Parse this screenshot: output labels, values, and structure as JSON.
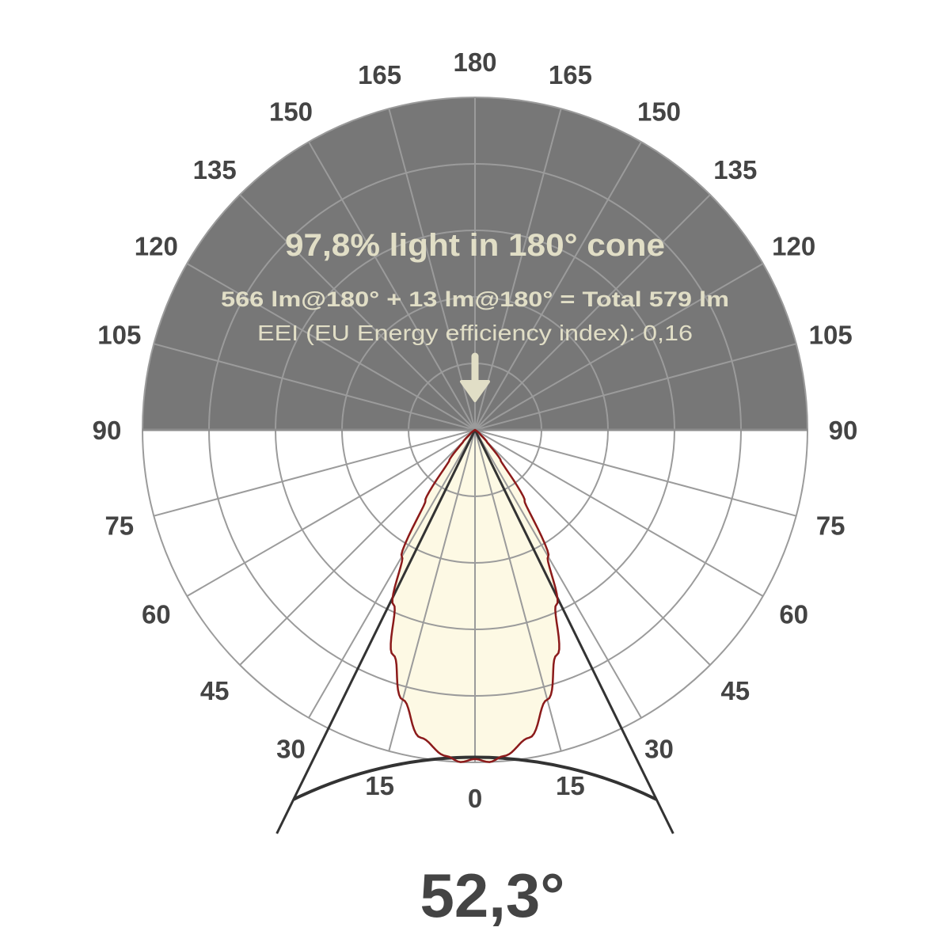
{
  "chart_data": {
    "type": "polar",
    "angle_tick_labels": [
      "0",
      "15",
      "30",
      "45",
      "60",
      "75",
      "90",
      "105",
      "120",
      "135",
      "150",
      "165",
      "180"
    ],
    "intensity_profile": {
      "angles_deg": [
        0,
        2.5,
        5,
        10,
        15,
        20,
        25,
        30,
        35,
        40,
        45,
        50,
        60,
        90
      ],
      "relative_intensity": [
        0.99,
        1.0,
        0.985,
        0.94,
        0.84,
        0.72,
        0.58,
        0.44,
        0.26,
        0.12,
        0.05,
        0.02,
        0.0,
        0.0
      ]
    },
    "radial_rings": 5,
    "spoke_step_deg": 15,
    "beam_angle_deg": 52.3,
    "beam_angle_label": "52,3°",
    "headline": "97,8% light in 180° cone",
    "flux_line": "566 lm@180° + 13 lm@180° = Total 579 lm",
    "eei_line": "EEI (EU Energy efficiency index): 0,16",
    "colors": {
      "upper_half": "#777777",
      "grid": "#9b9b9b",
      "curve_stroke": "#8b1a1a",
      "curve_fill": "#fdf9e4",
      "overlay_text": "#e1dec6",
      "cone_lines": "#333333",
      "labels": "#444444"
    }
  }
}
